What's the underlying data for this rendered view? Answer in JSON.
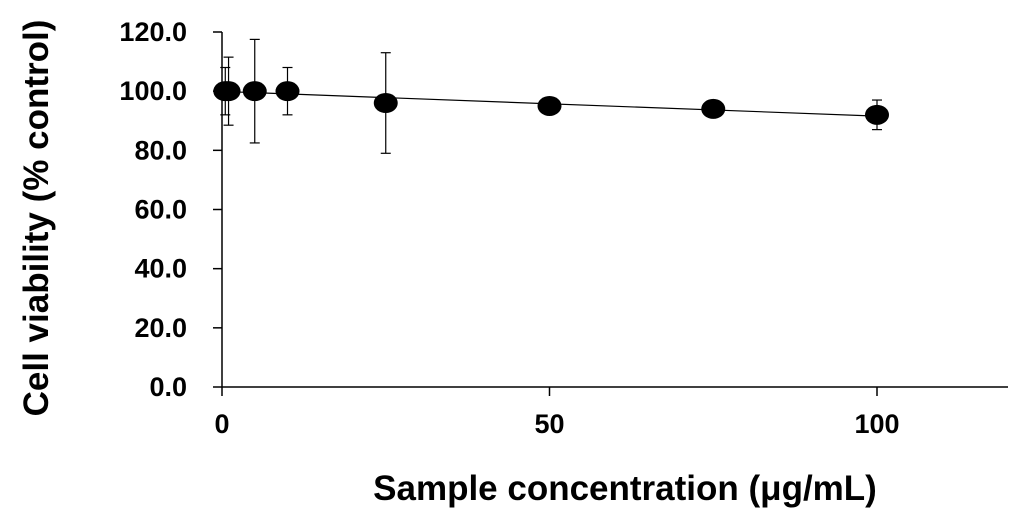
{
  "chart_data": {
    "type": "scatter",
    "xlabel": "Sample concentration (μg/mL)",
    "ylabel": "Cell viability (% control)",
    "xlim": [
      0,
      120
    ],
    "ylim": [
      0,
      120
    ],
    "x_ticks": [
      0,
      50,
      100
    ],
    "x_tick_labels": [
      "0",
      "50",
      "100"
    ],
    "y_ticks": [
      0,
      20,
      40,
      60,
      80,
      100,
      120
    ],
    "y_tick_labels": [
      "0.0",
      "20.0",
      "40.0",
      "60.0",
      "80.0",
      "100.0",
      "120.0"
    ],
    "grid": false,
    "legend": false,
    "trendline": true,
    "marker_color": "#000000",
    "series": [
      {
        "x": [
          0.5,
          1,
          5,
          10,
          25,
          50,
          75,
          100
        ],
        "y": [
          100,
          100,
          100,
          100,
          96,
          95,
          94,
          92
        ],
        "error": [
          8,
          11.5,
          17.5,
          8,
          17,
          0,
          0,
          5
        ]
      }
    ]
  }
}
